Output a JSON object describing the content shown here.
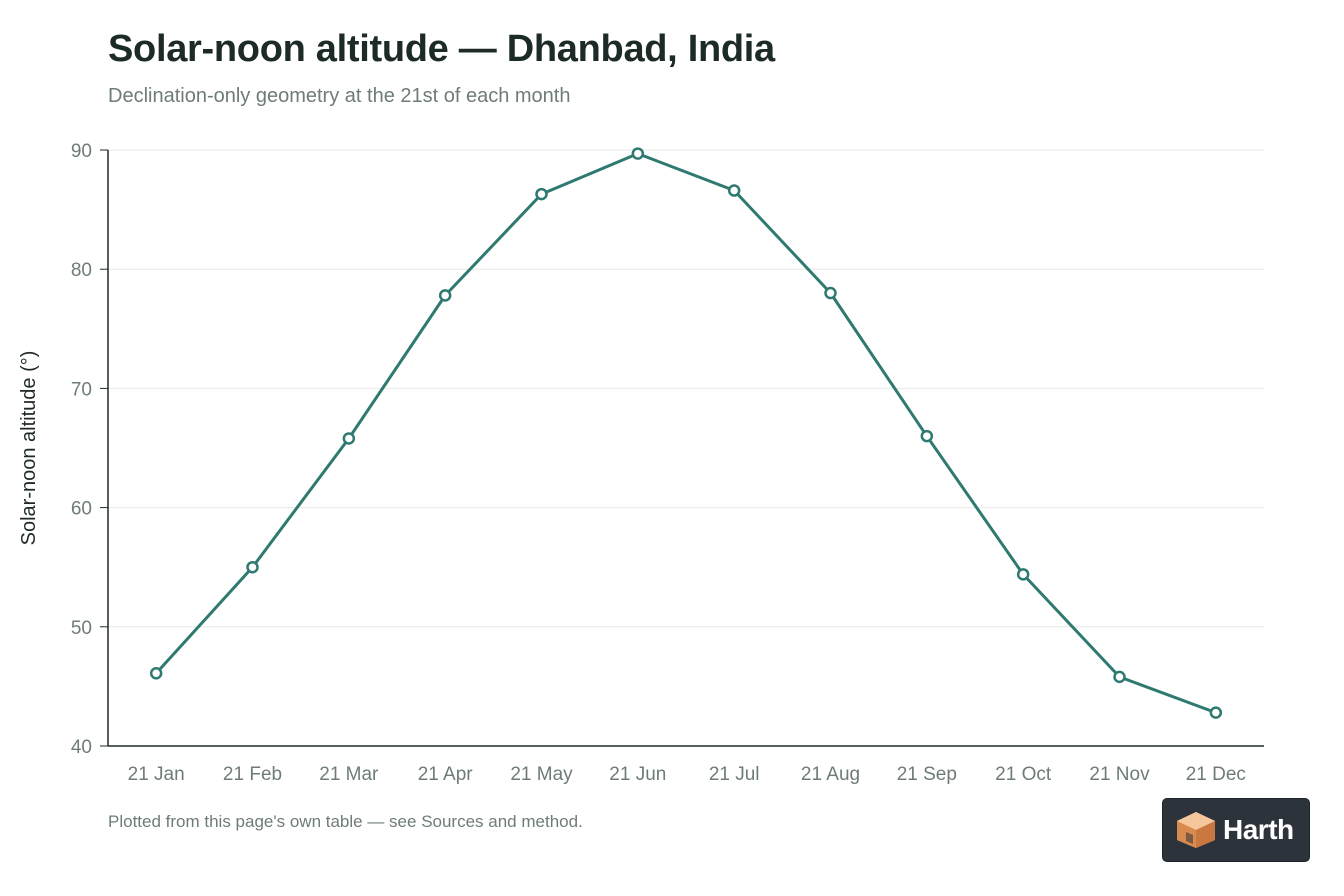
{
  "header": {
    "title": "Solar-noon altitude — Dhanbad, India",
    "subtitle": "Declination-only geometry at the 21st of each month"
  },
  "footer": {
    "note": "Plotted from this page's own table — see Sources and method."
  },
  "logo": {
    "text": "Harth"
  },
  "colors": {
    "series": "#2f7a70",
    "grid": "#e6e9e8",
    "axis": "#1f2a28",
    "tick_text": "#6e7c79"
  },
  "chart_data": {
    "type": "line",
    "title": "Solar-noon altitude — Dhanbad, India",
    "subtitle": "Declination-only geometry at the 21st of each month",
    "xlabel": "",
    "ylabel": "Solar-noon altitude (°)",
    "ylim": [
      40,
      90
    ],
    "yticks": [
      40,
      50,
      60,
      70,
      80,
      90
    ],
    "grid": true,
    "categories": [
      "21 Jan",
      "21 Feb",
      "21 Mar",
      "21 Apr",
      "21 May",
      "21 Jun",
      "21 Jul",
      "21 Aug",
      "21 Sep",
      "21 Oct",
      "21 Nov",
      "21 Dec"
    ],
    "values": [
      46.1,
      55.0,
      65.8,
      77.8,
      86.3,
      89.7,
      86.6,
      78.0,
      66.0,
      54.4,
      45.8,
      42.8
    ],
    "markers": "hollow-circle"
  }
}
